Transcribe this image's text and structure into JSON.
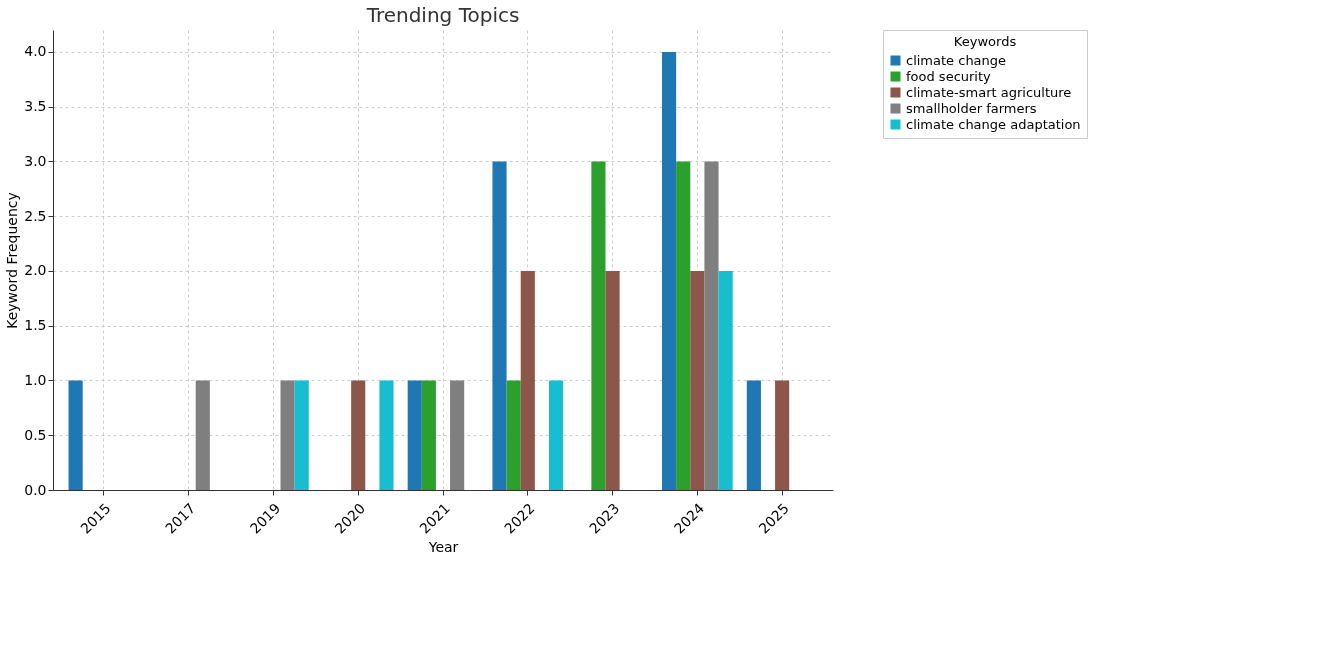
{
  "chart_data": {
    "type": "bar",
    "title": "Trending Topics",
    "xlabel": "Year",
    "ylabel": "Keyword Frequency",
    "legend_title": "Keywords",
    "categories": [
      "2015",
      "2017",
      "2019",
      "2020",
      "2021",
      "2022",
      "2023",
      "2024",
      "2025"
    ],
    "series": [
      {
        "name": "climate change",
        "color": "#1f77b4",
        "values": [
          1,
          0,
          0,
          0,
          1,
          3,
          0,
          4,
          1
        ]
      },
      {
        "name": "food security",
        "color": "#2ca02c",
        "values": [
          0,
          0,
          0,
          0,
          1,
          1,
          3,
          3,
          0
        ]
      },
      {
        "name": "climate-smart agriculture",
        "color": "#8c564b",
        "values": [
          0,
          0,
          0,
          1,
          0,
          2,
          2,
          2,
          1
        ]
      },
      {
        "name": "smallholder farmers",
        "color": "#7f7f7f",
        "values": [
          0,
          1,
          1,
          0,
          1,
          0,
          0,
          3,
          0
        ]
      },
      {
        "name": "climate change adaptation",
        "color": "#17becf",
        "values": [
          0,
          0,
          1,
          1,
          0,
          1,
          0,
          2,
          0
        ]
      }
    ],
    "ylim": [
      0,
      4.2
    ],
    "yticks": [
      {
        "value": 0,
        "label": "0.0"
      },
      {
        "value": 0.5,
        "label": "0.5"
      },
      {
        "value": 1,
        "label": "1.0"
      },
      {
        "value": 1.5,
        "label": "1.5"
      },
      {
        "value": 2,
        "label": "2.0"
      },
      {
        "value": 2.5,
        "label": "2.5"
      },
      {
        "value": 3,
        "label": "3.0"
      },
      {
        "value": 3.5,
        "label": "3.5"
      },
      {
        "value": 4,
        "label": "4.0"
      }
    ],
    "grid": true,
    "legend": "top right"
  }
}
